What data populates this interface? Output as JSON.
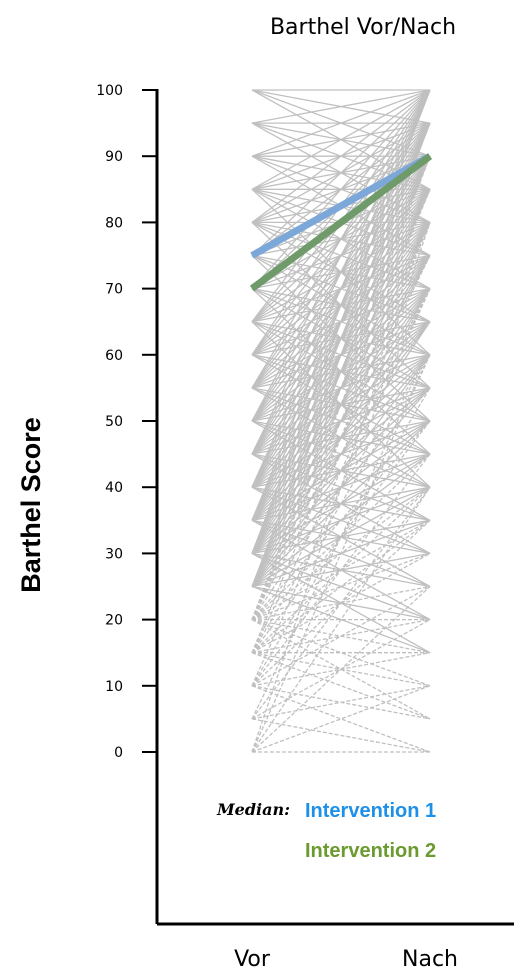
{
  "chart_data": {
    "type": "line",
    "title": "Barthel Vor/Nach",
    "ylabel": "Barthel Score",
    "xlabel": "",
    "categories": [
      "Vor",
      "Nach"
    ],
    "ylim": [
      0,
      100
    ],
    "yticks": [
      0,
      10,
      20,
      30,
      40,
      50,
      60,
      70,
      80,
      90,
      100
    ],
    "grid": false,
    "legend_title": "Median:",
    "legend_placement": "bottom",
    "series": [
      {
        "name": "Intervention 1",
        "values": [
          75,
          90
        ],
        "color": "#7ba7d9",
        "label_color": "#1e90e8"
      },
      {
        "name": "Intervention 2",
        "values": [
          70,
          90
        ],
        "color": "#6f9a6a",
        "label_color": "#6b9a2e"
      }
    ],
    "individual_pairs": {
      "color": "#c0c0c0",
      "pairs": [
        [
          100,
          100
        ],
        [
          100,
          95
        ],
        [
          100,
          90
        ],
        [
          95,
          100
        ],
        [
          95,
          95
        ],
        [
          95,
          90
        ],
        [
          95,
          85
        ],
        [
          90,
          100
        ],
        [
          90,
          95
        ],
        [
          90,
          90
        ],
        [
          90,
          85
        ],
        [
          90,
          80
        ],
        [
          85,
          100
        ],
        [
          85,
          95
        ],
        [
          85,
          90
        ],
        [
          85,
          85
        ],
        [
          85,
          80
        ],
        [
          85,
          75
        ],
        [
          80,
          100
        ],
        [
          80,
          95
        ],
        [
          80,
          90
        ],
        [
          80,
          85
        ],
        [
          80,
          80
        ],
        [
          80,
          75
        ],
        [
          80,
          70
        ],
        [
          75,
          100
        ],
        [
          75,
          95
        ],
        [
          75,
          90
        ],
        [
          75,
          85
        ],
        [
          75,
          80
        ],
        [
          75,
          70
        ],
        [
          75,
          65
        ],
        [
          70,
          100
        ],
        [
          70,
          95
        ],
        [
          70,
          90
        ],
        [
          70,
          85
        ],
        [
          70,
          80
        ],
        [
          70,
          75
        ],
        [
          70,
          65
        ],
        [
          70,
          60
        ],
        [
          65,
          100
        ],
        [
          65,
          95
        ],
        [
          65,
          90
        ],
        [
          65,
          85
        ],
        [
          65,
          80
        ],
        [
          65,
          75
        ],
        [
          65,
          70
        ],
        [
          65,
          60
        ],
        [
          65,
          55
        ],
        [
          60,
          100
        ],
        [
          60,
          95
        ],
        [
          60,
          90
        ],
        [
          60,
          85
        ],
        [
          60,
          80
        ],
        [
          60,
          75
        ],
        [
          60,
          70
        ],
        [
          60,
          65
        ],
        [
          60,
          55
        ],
        [
          60,
          50
        ],
        [
          55,
          100
        ],
        [
          55,
          95
        ],
        [
          55,
          90
        ],
        [
          55,
          85
        ],
        [
          55,
          80
        ],
        [
          55,
          75
        ],
        [
          55,
          70
        ],
        [
          55,
          65
        ],
        [
          55,
          60
        ],
        [
          55,
          50
        ],
        [
          55,
          45
        ],
        [
          50,
          100
        ],
        [
          50,
          95
        ],
        [
          50,
          90
        ],
        [
          50,
          85
        ],
        [
          50,
          80
        ],
        [
          50,
          75
        ],
        [
          50,
          70
        ],
        [
          50,
          65
        ],
        [
          50,
          60
        ],
        [
          50,
          55
        ],
        [
          50,
          45
        ],
        [
          50,
          40
        ],
        [
          45,
          100
        ],
        [
          45,
          95
        ],
        [
          45,
          90
        ],
        [
          45,
          85
        ],
        [
          45,
          80
        ],
        [
          45,
          75
        ],
        [
          45,
          70
        ],
        [
          45,
          65
        ],
        [
          45,
          60
        ],
        [
          45,
          55
        ],
        [
          45,
          50
        ],
        [
          45,
          40
        ],
        [
          45,
          35
        ],
        [
          40,
          100
        ],
        [
          40,
          95
        ],
        [
          40,
          90
        ],
        [
          40,
          85
        ],
        [
          40,
          80
        ],
        [
          40,
          75
        ],
        [
          40,
          70
        ],
        [
          40,
          65
        ],
        [
          40,
          60
        ],
        [
          40,
          55
        ],
        [
          40,
          50
        ],
        [
          40,
          45
        ],
        [
          40,
          35
        ],
        [
          40,
          30
        ],
        [
          35,
          100
        ],
        [
          35,
          95
        ],
        [
          35,
          90
        ],
        [
          35,
          85
        ],
        [
          35,
          80
        ],
        [
          35,
          75
        ],
        [
          35,
          70
        ],
        [
          35,
          65
        ],
        [
          35,
          60
        ],
        [
          35,
          55
        ],
        [
          35,
          50
        ],
        [
          35,
          45
        ],
        [
          35,
          40
        ],
        [
          35,
          30
        ],
        [
          35,
          25
        ],
        [
          30,
          100
        ],
        [
          30,
          95
        ],
        [
          30,
          90
        ],
        [
          30,
          85
        ],
        [
          30,
          80
        ],
        [
          30,
          75
        ],
        [
          30,
          70
        ],
        [
          30,
          65
        ],
        [
          30,
          60
        ],
        [
          30,
          55
        ],
        [
          30,
          50
        ],
        [
          30,
          45
        ],
        [
          30,
          40
        ],
        [
          30,
          35
        ],
        [
          30,
          25
        ],
        [
          30,
          20
        ],
        [
          25,
          95
        ],
        [
          25,
          90
        ],
        [
          25,
          85
        ],
        [
          25,
          80
        ],
        [
          25,
          75
        ],
        [
          25,
          70
        ],
        [
          25,
          65
        ],
        [
          25,
          60
        ],
        [
          25,
          55
        ],
        [
          25,
          50
        ],
        [
          25,
          45
        ],
        [
          25,
          40
        ],
        [
          25,
          35
        ],
        [
          25,
          30
        ],
        [
          25,
          20
        ],
        [
          25,
          15
        ],
        [
          20,
          90
        ],
        [
          20,
          85
        ],
        [
          20,
          80
        ],
        [
          20,
          75
        ],
        [
          20,
          70
        ],
        [
          20,
          60
        ],
        [
          20,
          50
        ],
        [
          20,
          45
        ],
        [
          20,
          40
        ],
        [
          20,
          35
        ],
        [
          20,
          30
        ],
        [
          20,
          25
        ],
        [
          20,
          20
        ],
        [
          20,
          15
        ],
        [
          20,
          10
        ],
        [
          20,
          5
        ],
        [
          15,
          80
        ],
        [
          15,
          70
        ],
        [
          15,
          60
        ],
        [
          15,
          50
        ],
        [
          15,
          40
        ],
        [
          15,
          35
        ],
        [
          15,
          30
        ],
        [
          15,
          20
        ],
        [
          15,
          15
        ],
        [
          15,
          10
        ],
        [
          15,
          5
        ],
        [
          10,
          70
        ],
        [
          10,
          55
        ],
        [
          10,
          45
        ],
        [
          10,
          35
        ],
        [
          10,
          25
        ],
        [
          10,
          15
        ],
        [
          10,
          5
        ],
        [
          10,
          0
        ],
        [
          5,
          60
        ],
        [
          5,
          40
        ],
        [
          5,
          20
        ],
        [
          5,
          10
        ],
        [
          5,
          0
        ],
        [
          0,
          80
        ],
        [
          0,
          60
        ],
        [
          0,
          40
        ],
        [
          0,
          25
        ],
        [
          0,
          10
        ],
        [
          0,
          0
        ],
        [
          100,
          85
        ],
        [
          95,
          80
        ],
        [
          90,
          75
        ],
        [
          85,
          70
        ],
        [
          80,
          65
        ],
        [
          75,
          60
        ],
        [
          70,
          55
        ],
        [
          65,
          50
        ],
        [
          60,
          45
        ],
        [
          55,
          40
        ],
        [
          50,
          35
        ],
        [
          45,
          30
        ],
        [
          40,
          25
        ],
        [
          35,
          20
        ],
        [
          30,
          15
        ],
        [
          85,
          60
        ],
        [
          80,
          55
        ],
        [
          75,
          50
        ],
        [
          70,
          45
        ],
        [
          65,
          40
        ]
      ]
    }
  }
}
